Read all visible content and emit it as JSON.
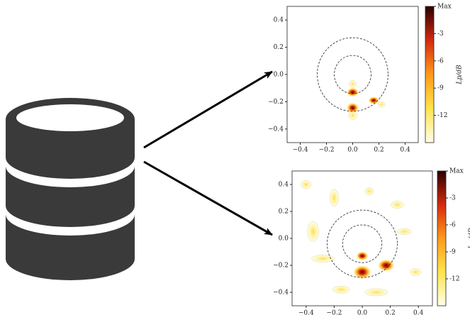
{
  "plots": [
    {
      "xlim": [
        -0.5,
        0.5
      ],
      "ylim": [
        -0.5,
        0.5
      ],
      "xticks": [
        {
          "value": -0.4,
          "label": "−0.4"
        },
        {
          "value": -0.2,
          "label": "−0.2"
        },
        {
          "value": 0,
          "label": "0.0"
        },
        0.2,
        0.4
      ],
      "yticks": [
        {
          "value": -0.4,
          "label": "−0.4"
        },
        {
          "value": -0.2,
          "label": "−0.2"
        },
        {
          "value": 0,
          "label": "0.0"
        },
        0.2,
        0.4
      ],
      "clim": [
        -15,
        0
      ],
      "cticks": [
        {
          "value": 0,
          "label": "Max"
        },
        -3,
        -6,
        -9,
        -12
      ],
      "colorbar_label": "Lp/dB"
    },
    {
      "xlim": [
        -0.5,
        0.5
      ],
      "ylim": [
        -0.5,
        0.5
      ],
      "xticks": [
        {
          "value": -0.4,
          "label": "−0.4"
        },
        {
          "value": -0.2,
          "label": "−0.2"
        },
        {
          "value": 0,
          "label": "0.0"
        },
        0.2,
        0.4
      ],
      "yticks": [
        {
          "value": -0.4,
          "label": "−0.4"
        },
        {
          "value": -0.2,
          "label": "−0.2"
        },
        {
          "value": 0,
          "label": "0.0"
        },
        0.2,
        0.4
      ],
      "clim": [
        -15,
        0
      ],
      "cticks": [
        {
          "value": 0,
          "label": "Max"
        },
        -3,
        -6,
        -9,
        -12
      ],
      "colorbar_label": "L−/dB"
    }
  ]
}
